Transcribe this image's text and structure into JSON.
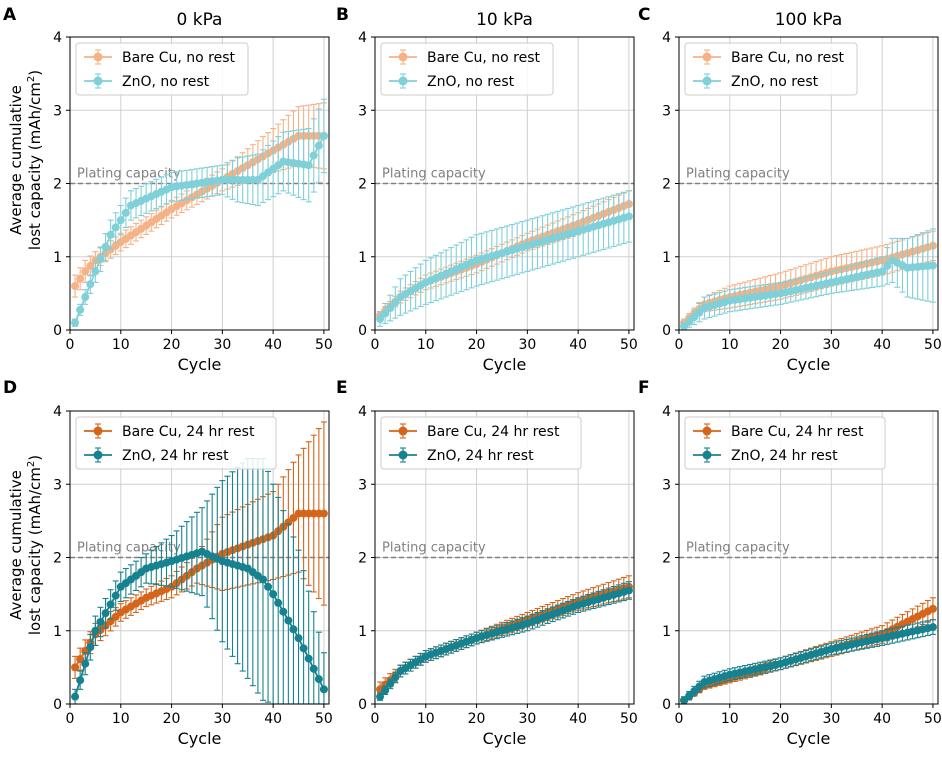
{
  "figure": {
    "y_axis_label_line1": "Average cumulative",
    "y_axis_label_line2": "lost capacity (mAh/cm",
    "y_axis_label_sup": "2",
    "y_axis_label_end": ")",
    "reference_label": "Plating capacity"
  },
  "colors": {
    "bare_cu_no_rest": "#f5b286",
    "zno_no_rest": "#7fd0d8",
    "bare_cu_24hr": "#d4651a",
    "zno_24hr": "#17828f",
    "reference_line": "#808080",
    "grid": "#d0d0d0"
  },
  "chart_data": [
    {
      "panel": "A",
      "type": "line",
      "title": "0 kPa",
      "xlabel": "Cycle",
      "xlim": [
        0,
        51
      ],
      "ylim": [
        0,
        4
      ],
      "xticks": [
        0,
        10,
        20,
        30,
        40,
        50
      ],
      "yticks": [
        0,
        1,
        2,
        3,
        4
      ],
      "grid": true,
      "legend": "top-left",
      "reference_y": 2,
      "series": [
        {
          "name": "Bare Cu, no rest",
          "color_key": "bare_cu_no_rest",
          "knots": [
            [
              1,
              0.6,
              0.15
            ],
            [
              3,
              0.8,
              0.15
            ],
            [
              5,
              0.95,
              0.12
            ],
            [
              10,
              1.2,
              0.12
            ],
            [
              20,
              1.65,
              0.12
            ],
            [
              30,
              2.05,
              0.15
            ],
            [
              40,
              2.45,
              0.3
            ],
            [
              45,
              2.65,
              0.4
            ],
            [
              50,
              2.65,
              0.45
            ]
          ]
        },
        {
          "name": "ZnO, no rest",
          "color_key": "zno_no_rest",
          "knots": [
            [
              1,
              0.1,
              0.05
            ],
            [
              3,
              0.45,
              0.1
            ],
            [
              5,
              0.8,
              0.15
            ],
            [
              8,
              1.3,
              0.2
            ],
            [
              12,
              1.7,
              0.2
            ],
            [
              20,
              1.95,
              0.2
            ],
            [
              30,
              2.05,
              0.2
            ],
            [
              33,
              2.05,
              0.3
            ],
            [
              37,
              2.05,
              0.35
            ],
            [
              42,
              2.3,
              0.4
            ],
            [
              47,
              2.25,
              0.5
            ],
            [
              50,
              2.65,
              0.5
            ]
          ]
        }
      ]
    },
    {
      "panel": "B",
      "type": "line",
      "title": "10 kPa",
      "xlabel": "Cycle",
      "xlim": [
        0,
        51
      ],
      "ylim": [
        0,
        4
      ],
      "xticks": [
        0,
        10,
        20,
        30,
        40,
        50
      ],
      "yticks": [
        0,
        1,
        2,
        3,
        4
      ],
      "grid": true,
      "legend": "top-left",
      "reference_y": 2,
      "series": [
        {
          "name": "Bare Cu, no rest",
          "color_key": "bare_cu_no_rest",
          "knots": [
            [
              1,
              0.2,
              0.05
            ],
            [
              5,
              0.45,
              0.08
            ],
            [
              10,
              0.65,
              0.1
            ],
            [
              20,
              0.9,
              0.12
            ],
            [
              30,
              1.2,
              0.12
            ],
            [
              40,
              1.45,
              0.15
            ],
            [
              50,
              1.72,
              0.18
            ]
          ]
        },
        {
          "name": "ZnO, no rest",
          "color_key": "zno_no_rest",
          "knots": [
            [
              1,
              0.15,
              0.1
            ],
            [
              5,
              0.45,
              0.25
            ],
            [
              10,
              0.65,
              0.3
            ],
            [
              20,
              0.95,
              0.35
            ],
            [
              30,
              1.15,
              0.35
            ],
            [
              40,
              1.35,
              0.35
            ],
            [
              50,
              1.55,
              0.35
            ]
          ]
        }
      ]
    },
    {
      "panel": "C",
      "type": "line",
      "title": "100 kPa",
      "xlabel": "Cycle",
      "xlim": [
        0,
        51
      ],
      "ylim": [
        0,
        4
      ],
      "xticks": [
        0,
        10,
        20,
        30,
        40,
        50
      ],
      "yticks": [
        0,
        1,
        2,
        3,
        4
      ],
      "grid": true,
      "legend": "top-left",
      "reference_y": 2,
      "series": [
        {
          "name": "Bare Cu, no rest",
          "color_key": "bare_cu_no_rest",
          "knots": [
            [
              1,
              0.1,
              0.05
            ],
            [
              5,
              0.35,
              0.1
            ],
            [
              10,
              0.45,
              0.15
            ],
            [
              20,
              0.6,
              0.18
            ],
            [
              30,
              0.8,
              0.2
            ],
            [
              40,
              0.95,
              0.2
            ],
            [
              50,
              1.15,
              0.2
            ]
          ]
        },
        {
          "name": "ZnO, no rest",
          "color_key": "zno_no_rest",
          "knots": [
            [
              1,
              0.05,
              0.05
            ],
            [
              5,
              0.3,
              0.15
            ],
            [
              10,
              0.4,
              0.15
            ],
            [
              20,
              0.5,
              0.15
            ],
            [
              30,
              0.65,
              0.15
            ],
            [
              40,
              0.8,
              0.2
            ],
            [
              42,
              0.95,
              0.3
            ],
            [
              45,
              0.85,
              0.4
            ],
            [
              50,
              0.88,
              0.5
            ]
          ]
        }
      ]
    },
    {
      "panel": "D",
      "type": "line",
      "title": "",
      "xlabel": "Cycle",
      "xlim": [
        0,
        51
      ],
      "ylim": [
        0,
        4
      ],
      "xticks": [
        0,
        10,
        20,
        30,
        40,
        50
      ],
      "yticks": [
        0,
        1,
        2,
        3,
        4
      ],
      "grid": true,
      "legend": "top-left",
      "reference_y": 2,
      "series": [
        {
          "name": "Bare Cu, 24 hr rest",
          "color_key": "bare_cu_24hr",
          "knots": [
            [
              1,
              0.5,
              0.15
            ],
            [
              5,
              0.95,
              0.15
            ],
            [
              10,
              1.25,
              0.12
            ],
            [
              15,
              1.45,
              0.12
            ],
            [
              20,
              1.6,
              0.15
            ],
            [
              25,
              1.85,
              0.2
            ],
            [
              30,
              2.05,
              0.5
            ],
            [
              40,
              2.3,
              0.6
            ],
            [
              45,
              2.6,
              0.8
            ],
            [
              50,
              2.6,
              1.25
            ]
          ]
        },
        {
          "name": "ZnO, 24 hr rest",
          "color_key": "zno_24hr",
          "knots": [
            [
              1,
              0.1,
              0.1
            ],
            [
              5,
              1.0,
              0.2
            ],
            [
              10,
              1.6,
              0.2
            ],
            [
              15,
              1.85,
              0.2
            ],
            [
              20,
              1.95,
              0.35
            ],
            [
              26,
              2.08,
              0.6
            ],
            [
              30,
              1.95,
              1.1
            ],
            [
              35,
              1.85,
              1.5
            ],
            [
              38,
              1.7,
              1.65
            ],
            [
              40,
              1.5,
              1.5
            ],
            [
              45,
              0.9,
              1.2
            ],
            [
              50,
              0.2,
              0.5
            ]
          ]
        }
      ]
    },
    {
      "panel": "E",
      "type": "line",
      "title": "",
      "xlabel": "Cycle",
      "xlim": [
        0,
        51
      ],
      "ylim": [
        0,
        4
      ],
      "xticks": [
        0,
        10,
        20,
        30,
        40,
        50
      ],
      "yticks": [
        0,
        1,
        2,
        3,
        4
      ],
      "grid": true,
      "legend": "top-left",
      "reference_y": 2,
      "series": [
        {
          "name": "Bare Cu, 24 hr rest",
          "color_key": "bare_cu_24hr",
          "knots": [
            [
              1,
              0.2,
              0.1
            ],
            [
              5,
              0.45,
              0.08
            ],
            [
              10,
              0.65,
              0.08
            ],
            [
              20,
              0.9,
              0.08
            ],
            [
              30,
              1.15,
              0.1
            ],
            [
              40,
              1.4,
              0.12
            ],
            [
              50,
              1.6,
              0.15
            ]
          ]
        },
        {
          "name": "ZnO, 24 hr rest",
          "color_key": "zno_24hr",
          "knots": [
            [
              1,
              0.1,
              0.05
            ],
            [
              5,
              0.45,
              0.08
            ],
            [
              10,
              0.65,
              0.08
            ],
            [
              20,
              0.9,
              0.08
            ],
            [
              30,
              1.1,
              0.1
            ],
            [
              40,
              1.35,
              0.1
            ],
            [
              50,
              1.55,
              0.12
            ]
          ]
        }
      ]
    },
    {
      "panel": "F",
      "type": "line",
      "title": "",
      "xlabel": "Cycle",
      "xlim": [
        0,
        51
      ],
      "ylim": [
        0,
        4
      ],
      "xticks": [
        0,
        10,
        20,
        30,
        40,
        50
      ],
      "yticks": [
        0,
        1,
        2,
        3,
        4
      ],
      "grid": true,
      "legend": "top-left",
      "reference_y": 2,
      "series": [
        {
          "name": "Bare Cu, 24 hr rest",
          "color_key": "bare_cu_24hr",
          "knots": [
            [
              1,
              0.05,
              0.03
            ],
            [
              5,
              0.25,
              0.05
            ],
            [
              10,
              0.35,
              0.06
            ],
            [
              20,
              0.55,
              0.08
            ],
            [
              30,
              0.75,
              0.1
            ],
            [
              40,
              0.95,
              0.12
            ],
            [
              50,
              1.3,
              0.15
            ]
          ]
        },
        {
          "name": "ZnO, 24 hr rest",
          "color_key": "zno_24hr",
          "knots": [
            [
              1,
              0.05,
              0.05
            ],
            [
              5,
              0.3,
              0.08
            ],
            [
              10,
              0.4,
              0.08
            ],
            [
              20,
              0.55,
              0.08
            ],
            [
              30,
              0.75,
              0.08
            ],
            [
              40,
              0.9,
              0.1
            ],
            [
              50,
              1.05,
              0.1
            ]
          ]
        }
      ]
    }
  ]
}
